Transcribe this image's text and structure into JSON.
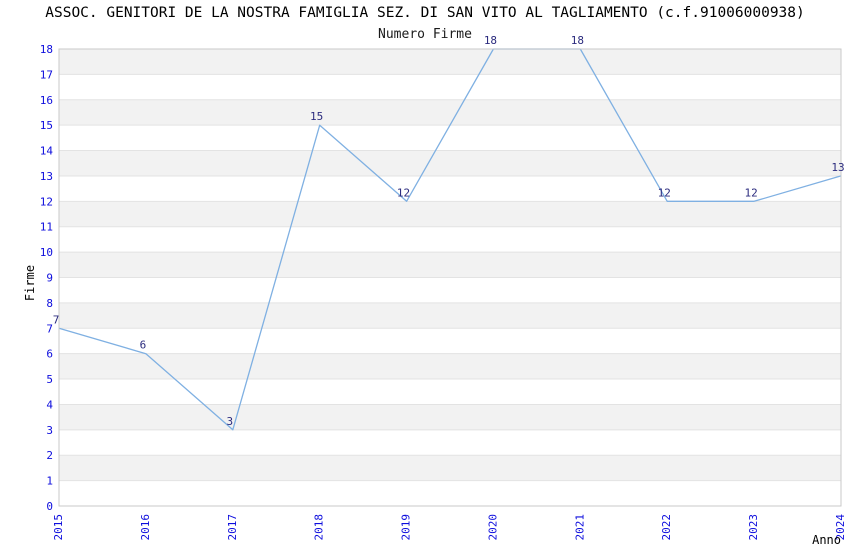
{
  "chart_data": {
    "type": "line",
    "title": "ASSOC. GENITORI DE LA NOSTRA FAMIGLIA SEZ. DI SAN VITO AL TAGLIAMENTO (c.f.91006000938)",
    "subtitle": "Numero Firme",
    "xlabel": "Anno",
    "ylabel": "Firme",
    "categories": [
      "2015",
      "2016",
      "2017",
      "2018",
      "2019",
      "2020",
      "2021",
      "2022",
      "2023",
      "2024"
    ],
    "values": [
      7,
      6,
      3,
      15,
      12,
      18,
      18,
      12,
      12,
      13
    ],
    "point_labels": [
      "7",
      "6",
      "3",
      "15",
      "12",
      "18",
      "18",
      "12",
      "12",
      "13"
    ],
    "y_ticks": [
      0,
      1,
      2,
      3,
      4,
      5,
      6,
      7,
      8,
      9,
      10,
      11,
      12,
      13,
      14,
      15,
      16,
      17,
      18
    ],
    "ylim": [
      0,
      18
    ],
    "grid": "horizontal gridlines with alternating shaded bands",
    "legend_position": "none",
    "colors": {
      "line": "#7fb0e2",
      "tick_label": "#0d0ddd",
      "point_label": "#2b2b7e",
      "band_fill": "#f2f2f2",
      "gridline": "#e3e3e3",
      "plot_border": "#c9c9c9",
      "text": "#000000",
      "background": "#ffffff"
    }
  }
}
